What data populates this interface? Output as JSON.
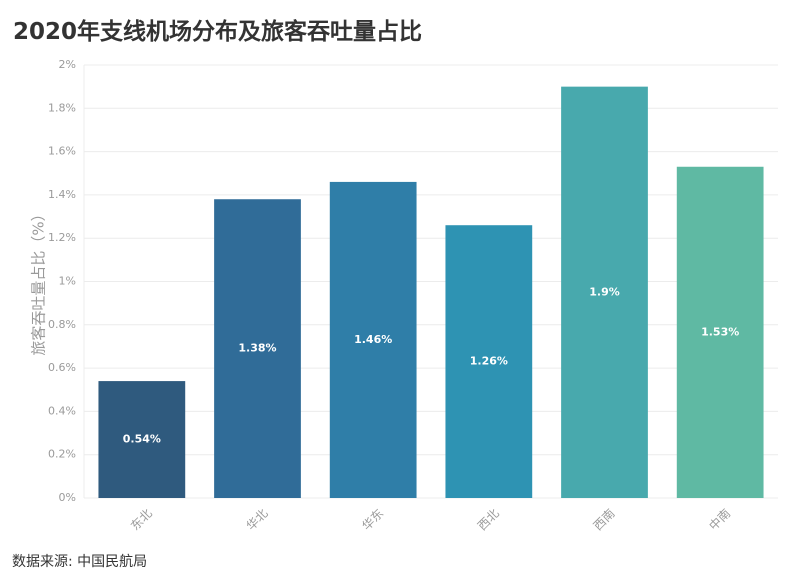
{
  "chart_data": {
    "type": "bar",
    "title": "2020年支线机场分布及旅客吞吐量占比",
    "ylabel": "旅客吞吐量占比（%）",
    "xlabel": "",
    "categories": [
      "东北",
      "华北",
      "华东",
      "西北",
      "西南",
      "中南"
    ],
    "values": [
      0.54,
      1.38,
      1.46,
      1.26,
      1.9,
      1.53
    ],
    "data_labels": [
      "0.54%",
      "1.38%",
      "1.46%",
      "1.26%",
      "1.9%",
      "1.53%"
    ],
    "ylim": [
      0,
      2
    ],
    "yticks": [
      0,
      0.2,
      0.4,
      0.6,
      0.8,
      1,
      1.2,
      1.4,
      1.6,
      1.8,
      2
    ],
    "ytick_labels": [
      "0%",
      "0.2%",
      "0.4%",
      "0.6%",
      "0.8%",
      "1%",
      "1.2%",
      "1.4%",
      "1.6%",
      "1.8%",
      "2%"
    ],
    "colors": [
      "#2f5a7e",
      "#306c98",
      "#2f7ea8",
      "#2e93b3",
      "#48a9ad",
      "#5fb9a3"
    ],
    "grid": true,
    "legend": "none"
  },
  "source": "数据来源: 中国民航局"
}
